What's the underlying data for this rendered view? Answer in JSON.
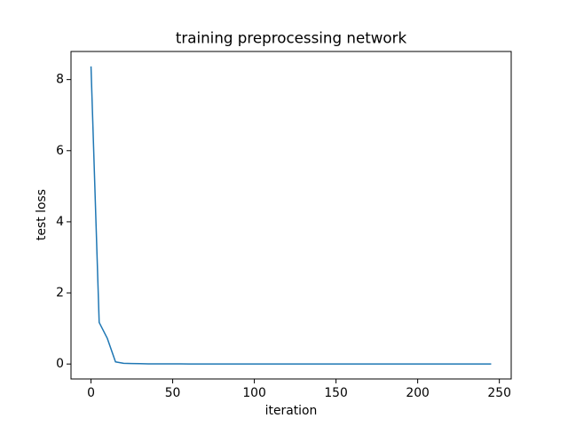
{
  "chart_data": {
    "type": "line",
    "title": "training preprocessing network",
    "x_label": "iteration",
    "y_label": "test loss",
    "x": [
      0,
      5,
      10,
      15,
      20,
      25,
      30,
      35,
      40,
      45,
      50,
      55,
      60,
      65,
      70,
      75,
      80,
      85,
      90,
      95,
      100,
      105,
      110,
      115,
      120,
      125,
      130,
      135,
      140,
      145,
      150,
      155,
      160,
      165,
      170,
      175,
      180,
      185,
      190,
      195,
      200,
      205,
      210,
      215,
      220,
      225,
      230,
      235,
      240,
      245
    ],
    "series": [
      {
        "name": "test loss",
        "color": "#1f77b4",
        "values": [
          8.37,
          1.17,
          0.72,
          0.06,
          0.02,
          0.015,
          0.01,
          0.005,
          0.004,
          0.003,
          0.003,
          0.003,
          0.002,
          0.002,
          0.002,
          0.002,
          0.002,
          0.002,
          0.002,
          0.002,
          0.002,
          0.002,
          0.002,
          0.002,
          0.002,
          0.002,
          0.002,
          0.002,
          0.002,
          0.002,
          0.002,
          0.002,
          0.002,
          0.002,
          0.002,
          0.002,
          0.002,
          0.002,
          0.002,
          0.002,
          0.002,
          0.002,
          0.002,
          0.002,
          0.002,
          0.002,
          0.002,
          0.002,
          0.002,
          0.002
        ]
      }
    ],
    "xlim": [
      -12.25,
      257.25
    ],
    "xticks": [
      0,
      50,
      100,
      150,
      200,
      250
    ],
    "ylim": [
      -0.42,
      8.79
    ],
    "yticks": [
      0,
      2,
      4,
      6,
      8
    ]
  }
}
